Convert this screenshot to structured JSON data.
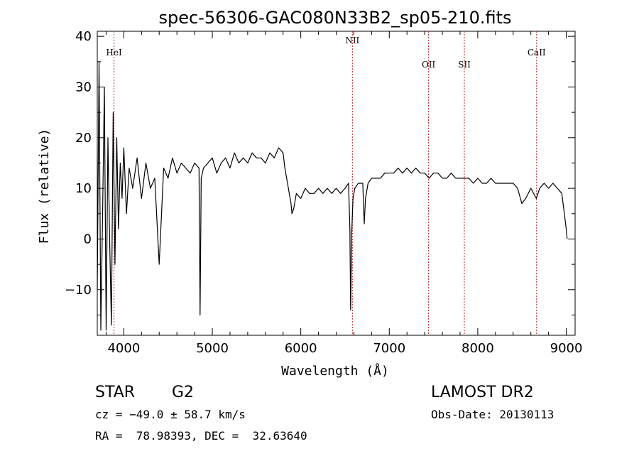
{
  "chart_data": {
    "type": "line",
    "title": "spec-56306-GAC080N33B2_sp05-210.fits",
    "xlabel": "Wavelength (Å)",
    "ylabel": "Flux (relative)",
    "xlim": [
      3700,
      9100
    ],
    "ylim": [
      -19,
      41
    ],
    "xticks": [
      4000,
      5000,
      6000,
      7000,
      8000,
      9000
    ],
    "xtick_labels": [
      "4000",
      "5000",
      "6000",
      "7000",
      "8000",
      "9000"
    ],
    "yticks": [
      -10,
      0,
      10,
      20,
      30,
      40
    ],
    "ytick_labels": [
      "−10",
      "0",
      "10",
      "20",
      "30",
      "40"
    ],
    "grid": false,
    "lines": [
      {
        "label": "HeI",
        "x": 3889
      },
      {
        "label": "NII",
        "x": 6583
      },
      {
        "label": "OII",
        "x": 7444
      },
      {
        "label": "SII",
        "x": 7848
      },
      {
        "label": "CaII",
        "x": 8665
      }
    ],
    "series": [
      {
        "color": "#000000",
        "x": [
          3700,
          3720,
          3740,
          3760,
          3780,
          3800,
          3820,
          3840,
          3860,
          3880,
          3900,
          3920,
          3940,
          3960,
          3980,
          4000,
          4030,
          4060,
          4100,
          4150,
          4200,
          4250,
          4300,
          4350,
          4400,
          4450,
          4500,
          4550,
          4600,
          4650,
          4700,
          4750,
          4800,
          4850,
          4862,
          4875,
          4900,
          4950,
          5000,
          5050,
          5100,
          5150,
          5200,
          5250,
          5300,
          5350,
          5400,
          5450,
          5500,
          5550,
          5600,
          5650,
          5700,
          5750,
          5800,
          5820,
          5850,
          5870,
          5890,
          5900,
          5920,
          5950,
          6000,
          6050,
          6100,
          6150,
          6200,
          6250,
          6300,
          6350,
          6400,
          6450,
          6500,
          6540,
          6555,
          6563,
          6575,
          6590,
          6610,
          6650,
          6700,
          6717,
          6731,
          6760,
          6800,
          6850,
          6900,
          6950,
          7000,
          7050,
          7100,
          7150,
          7200,
          7250,
          7300,
          7350,
          7400,
          7450,
          7500,
          7550,
          7600,
          7650,
          7700,
          7750,
          7800,
          7850,
          7900,
          7950,
          8000,
          8050,
          8100,
          8150,
          8200,
          8250,
          8300,
          8350,
          8400,
          8450,
          8498,
          8542,
          8600,
          8662,
          8700,
          8750,
          8800,
          8850,
          8900,
          8950,
          9000,
          9010
        ],
        "y": [
          -10,
          35,
          -18,
          5,
          30,
          -18,
          20,
          0,
          -17,
          25,
          -5,
          20,
          2,
          15,
          8,
          18,
          5,
          14,
          10,
          16,
          8,
          15,
          10,
          12,
          -5,
          14,
          12,
          16,
          13,
          15,
          14,
          13,
          15,
          14,
          -15,
          12,
          14,
          15,
          16,
          13,
          15,
          16,
          14,
          17,
          15,
          16,
          15,
          17,
          16,
          16,
          15,
          17,
          16,
          18,
          17,
          14,
          11,
          9,
          7,
          5,
          6,
          9,
          8,
          10,
          9,
          9,
          10,
          9,
          10,
          9,
          10,
          9,
          10,
          11,
          2,
          -14,
          1,
          8,
          10,
          11,
          11,
          3,
          8,
          11,
          12,
          12,
          12,
          13,
          13,
          13,
          14,
          13,
          14,
          13,
          14,
          13,
          13,
          12,
          13,
          13,
          12,
          12,
          13,
          12,
          12,
          12,
          12,
          11,
          12,
          11,
          11,
          12,
          11,
          11,
          11,
          11,
          11,
          10,
          7,
          8,
          10,
          8,
          10,
          11,
          10,
          11,
          10,
          9,
          2,
          0
        ]
      }
    ]
  },
  "info": {
    "object_class": "STAR",
    "subclass": "G2",
    "survey": "LAMOST DR2",
    "cz": "cz = −49.0 ± 58.7 km/s",
    "obs_date": "Obs-Date: 20130113",
    "coords": "RA =  78.98393, DEC =  32.63640"
  }
}
